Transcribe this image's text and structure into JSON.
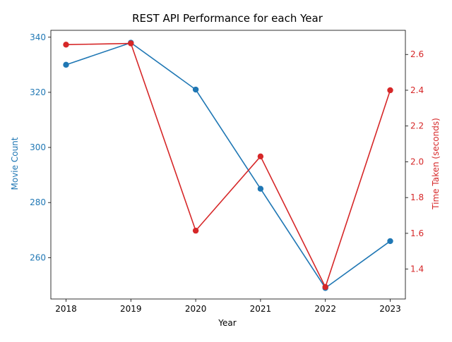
{
  "chart_data": {
    "type": "line",
    "title": "REST API Performance for each Year",
    "xlabel": "Year",
    "categories": [
      "2018",
      "2019",
      "2020",
      "2021",
      "2022",
      "2023"
    ],
    "y_left": {
      "label": "Movie Count",
      "ylim": [
        245,
        342.5
      ],
      "ticks": [
        260,
        280,
        300,
        320,
        340
      ],
      "tick_labels": [
        "260",
        "280",
        "300",
        "320",
        "340"
      ],
      "color": "#1f77b4"
    },
    "y_right": {
      "label": "Time Taken (seconds)",
      "ylim": [
        1.233,
        2.735
      ],
      "ticks": [
        1.4,
        1.6,
        1.8,
        2.0,
        2.2,
        2.4,
        2.6
      ],
      "tick_labels": [
        "1.4",
        "1.6",
        "1.8",
        "2.0",
        "2.2",
        "2.4",
        "2.6"
      ],
      "color": "#d62728"
    },
    "series": [
      {
        "axis": "left",
        "color": "#1f77b4",
        "values": [
          330,
          338,
          321,
          285,
          249,
          266
        ]
      },
      {
        "axis": "right",
        "color": "#d62728",
        "values": [
          2.655,
          2.662,
          1.615,
          2.03,
          1.3,
          2.4
        ]
      }
    ],
    "grid": false,
    "legend": "none"
  }
}
